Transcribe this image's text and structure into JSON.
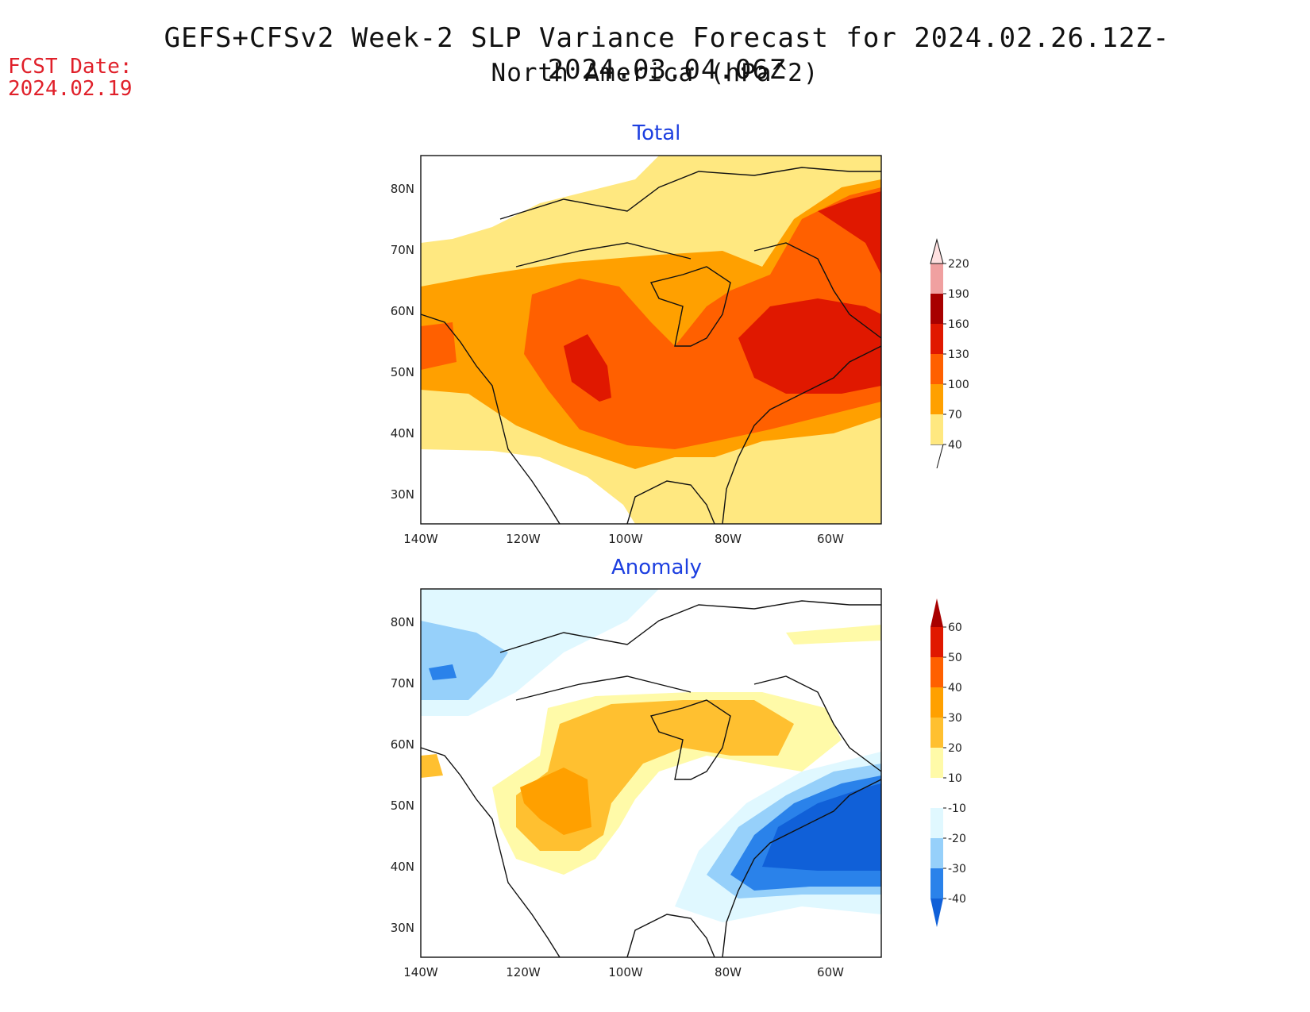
{
  "header": {
    "title_line1": "GEFS+CFSv2 Week-2 SLP Variance Forecast for 2024.02.26.12Z-2024.03.04.06Z",
    "title_line2": "North America (hPa^2)",
    "fcst_label": "FCST Date:",
    "fcst_date": "2024.02.19"
  },
  "axes": {
    "lat_labels": [
      "80N",
      "70N",
      "60N",
      "50N",
      "40N",
      "30N"
    ],
    "lon_labels": [
      "140W",
      "120W",
      "100W",
      "80W",
      "60W"
    ]
  },
  "panels": [
    {
      "title": "Total",
      "colorbar": {
        "colors": [
          "#ffffff",
          "#ffe880",
          "#ffa000",
          "#ff6000",
          "#e01800",
          "#a80000",
          "#f0a0a0",
          "#ffe0e0"
        ],
        "levels": [
          "40",
          "70",
          "100",
          "130",
          "160",
          "190",
          "220"
        ]
      }
    },
    {
      "title": "Anomaly",
      "colorbar": {
        "colors": [
          "#1060d8",
          "#2a82ea",
          "#96d0fa",
          "#e0f8ff",
          "#ffffff",
          "#fffaa8",
          "#ffc030",
          "#ffa000",
          "#ff6000",
          "#e01800",
          "#a80000"
        ],
        "levels": [
          "60",
          "50",
          "40",
          "30",
          "20",
          "10",
          "-10",
          "-20",
          "-30",
          "-40"
        ]
      }
    }
  ]
}
